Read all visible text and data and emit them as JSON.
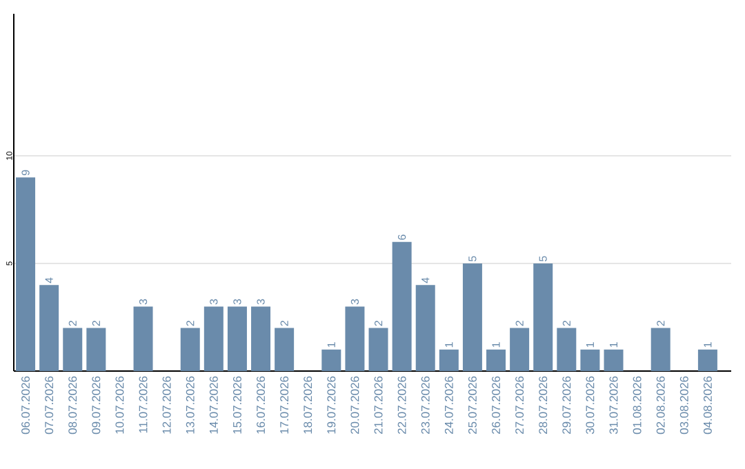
{
  "chart_data": {
    "type": "bar",
    "categories": [
      "06.07.2026",
      "07.07.2026",
      "08.07.2026",
      "09.07.2026",
      "10.07.2026",
      "11.07.2026",
      "12.07.2026",
      "13.07.2026",
      "14.07.2026",
      "15.07.2026",
      "16.07.2026",
      "17.07.2026",
      "18.07.2026",
      "19.07.2026",
      "20.07.2026",
      "21.07.2026",
      "22.07.2026",
      "23.07.2026",
      "24.07.2026",
      "25.07.2026",
      "26.07.2026",
      "27.07.2026",
      "28.07.2026",
      "29.07.2026",
      "30.07.2026",
      "31.07.2026",
      "01.08.2026",
      "02.08.2026",
      "03.08.2026",
      "04.08.2026"
    ],
    "values": [
      9,
      4,
      2,
      2,
      0,
      3,
      0,
      2,
      3,
      3,
      3,
      2,
      0,
      1,
      3,
      2,
      6,
      4,
      1,
      5,
      1,
      2,
      5,
      2,
      1,
      1,
      0,
      2,
      0,
      1
    ],
    "value_labels": [
      "9",
      "4",
      "2",
      "2",
      null,
      "3",
      null,
      "2",
      "3",
      "3",
      "3",
      "2",
      null,
      "1",
      "3",
      "2",
      "6",
      "4",
      "1",
      "5",
      "1",
      "2",
      "5",
      "2",
      "1",
      "1",
      null,
      "2",
      null,
      "1"
    ],
    "color": "#6a8bab",
    "ylim": [
      0,
      16.6
    ],
    "yticks": [
      5,
      10
    ],
    "grid": "y"
  }
}
